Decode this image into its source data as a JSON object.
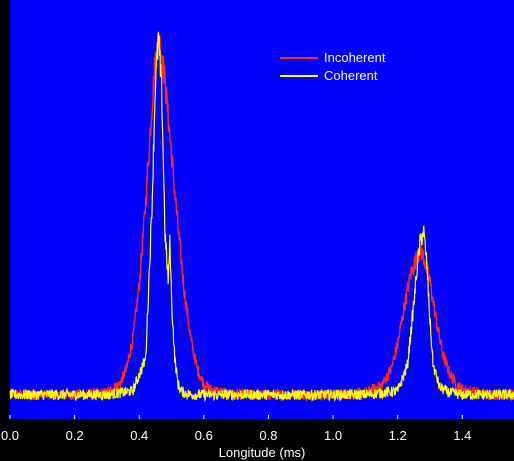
{
  "chart_data": {
    "type": "line",
    "title": "",
    "xlabel": "Longitude (ms)",
    "ylabel": "",
    "xlim": [
      0.0,
      1.56
    ],
    "xticks": [
      "0.0",
      "0.2",
      "0.4",
      "0.6",
      "0.8",
      "1.0",
      "1.2",
      "1.4"
    ],
    "y_tick_labels_shown": false,
    "grid": false,
    "legend_position": "top-right",
    "background_color": "#0000ff",
    "frame_color": "#000000",
    "series": [
      {
        "name": "Incoherent",
        "color": "#ff2a1a",
        "x": [
          0.0,
          0.1,
          0.2,
          0.3,
          0.34,
          0.36,
          0.38,
          0.4,
          0.42,
          0.44,
          0.45,
          0.46,
          0.47,
          0.48,
          0.5,
          0.52,
          0.54,
          0.56,
          0.58,
          0.6,
          0.62,
          0.66,
          0.7,
          0.8,
          0.9,
          1.0,
          1.1,
          1.15,
          1.18,
          1.2,
          1.22,
          1.24,
          1.26,
          1.27,
          1.28,
          1.3,
          1.32,
          1.34,
          1.36,
          1.38,
          1.4,
          1.45,
          1.5,
          1.56
        ],
        "y": [
          0.02,
          0.02,
          0.02,
          0.025,
          0.05,
          0.09,
          0.17,
          0.32,
          0.55,
          0.82,
          0.94,
          1.0,
          0.96,
          0.88,
          0.68,
          0.48,
          0.3,
          0.17,
          0.09,
          0.05,
          0.035,
          0.025,
          0.02,
          0.02,
          0.02,
          0.02,
          0.025,
          0.045,
          0.09,
          0.16,
          0.26,
          0.35,
          0.4,
          0.415,
          0.4,
          0.33,
          0.22,
          0.13,
          0.08,
          0.05,
          0.035,
          0.025,
          0.02,
          0.02
        ]
      },
      {
        "name": "Coherent",
        "color": "#ffff00",
        "x": [
          0.0,
          0.1,
          0.2,
          0.3,
          0.38,
          0.42,
          0.44,
          0.45,
          0.46,
          0.47,
          0.48,
          0.49,
          0.495,
          0.5,
          0.51,
          0.52,
          0.53,
          0.54,
          0.56,
          0.6,
          0.7,
          0.8,
          0.9,
          1.0,
          1.1,
          1.2,
          1.23,
          1.25,
          1.26,
          1.27,
          1.28,
          1.29,
          1.3,
          1.31,
          1.33,
          1.36,
          1.4,
          1.5,
          1.56
        ],
        "y": [
          0.02,
          0.02,
          0.02,
          0.02,
          0.03,
          0.12,
          0.55,
          0.88,
          1.0,
          0.84,
          0.46,
          0.33,
          0.45,
          0.28,
          0.12,
          0.05,
          0.03,
          0.025,
          0.02,
          0.02,
          0.02,
          0.02,
          0.02,
          0.02,
          0.02,
          0.03,
          0.1,
          0.27,
          0.37,
          0.44,
          0.47,
          0.38,
          0.22,
          0.1,
          0.04,
          0.025,
          0.02,
          0.02,
          0.02
        ]
      }
    ]
  }
}
